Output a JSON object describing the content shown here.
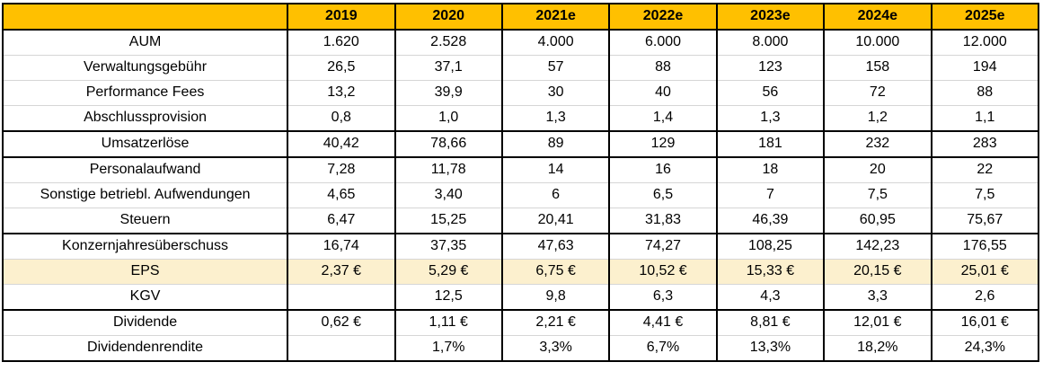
{
  "chart_data": {
    "type": "table",
    "columns": [
      "",
      "2019",
      "2020",
      "2021e",
      "2022e",
      "2023e",
      "2024e",
      "2025e"
    ],
    "rows": [
      {
        "label": "AUM",
        "values": [
          "1.620",
          "2.528",
          "4.000",
          "6.000",
          "8.000",
          "10.000",
          "12.000"
        ],
        "highlight": false
      },
      {
        "label": "Verwaltungsgebühr",
        "values": [
          "26,5",
          "37,1",
          "57",
          "88",
          "123",
          "158",
          "194"
        ],
        "highlight": false
      },
      {
        "label": "Performance Fees",
        "values": [
          "13,2",
          "39,9",
          "30",
          "40",
          "56",
          "72",
          "88"
        ],
        "highlight": false
      },
      {
        "label": "Abschlussprovision",
        "values": [
          "0,8",
          "1,0",
          "1,3",
          "1,4",
          "1,3",
          "1,2",
          "1,1"
        ],
        "highlight": false
      },
      {
        "label": "Umsatzerlöse",
        "values": [
          "40,42",
          "78,66",
          "89",
          "129",
          "181",
          "232",
          "283"
        ],
        "highlight": false
      },
      {
        "label": "Personalaufwand",
        "values": [
          "7,28",
          "11,78",
          "14",
          "16",
          "18",
          "20",
          "22"
        ],
        "highlight": false
      },
      {
        "label": "Sonstige betriebl. Aufwendungen",
        "values": [
          "4,65",
          "3,40",
          "6",
          "6,5",
          "7",
          "7,5",
          "7,5"
        ],
        "highlight": false
      },
      {
        "label": "Steuern",
        "values": [
          "6,47",
          "15,25",
          "20,41",
          "31,83",
          "46,39",
          "60,95",
          "75,67"
        ],
        "highlight": false
      },
      {
        "label": "Konzernjahresüberschuss",
        "values": [
          "16,74",
          "37,35",
          "47,63",
          "74,27",
          "108,25",
          "142,23",
          "176,55"
        ],
        "highlight": false
      },
      {
        "label": "EPS",
        "values": [
          "2,37 €",
          "5,29 €",
          "6,75 €",
          "10,52 €",
          "15,33 €",
          "20,15 €",
          "25,01 €"
        ],
        "highlight": true
      },
      {
        "label": "KGV",
        "values": [
          "",
          "12,5",
          "9,8",
          "6,3",
          "4,3",
          "3,3",
          "2,6"
        ],
        "highlight": false
      },
      {
        "label": "Dividende",
        "values": [
          "0,62 €",
          "1,11 €",
          "2,21 €",
          "4,41 €",
          "8,81 €",
          "12,01 €",
          "16,01 €"
        ],
        "highlight": false
      },
      {
        "label": "Dividendenrendite",
        "values": [
          "",
          "1,7%",
          "3,3%",
          "6,7%",
          "13,3%",
          "18,2%",
          "24,3%"
        ],
        "highlight": false
      }
    ],
    "layout": {
      "section_start_row_labels": [
        "Umsatzerlöse",
        "Konzernjahresüberschuss",
        "Dividende"
      ],
      "grid": "on",
      "header_position": "top"
    }
  },
  "colors": {
    "header_bg": "#FFC000",
    "highlight_bg": "#FCF0CE",
    "grid_thin": "#D6D6D6",
    "grid_thick": "#000000"
  }
}
